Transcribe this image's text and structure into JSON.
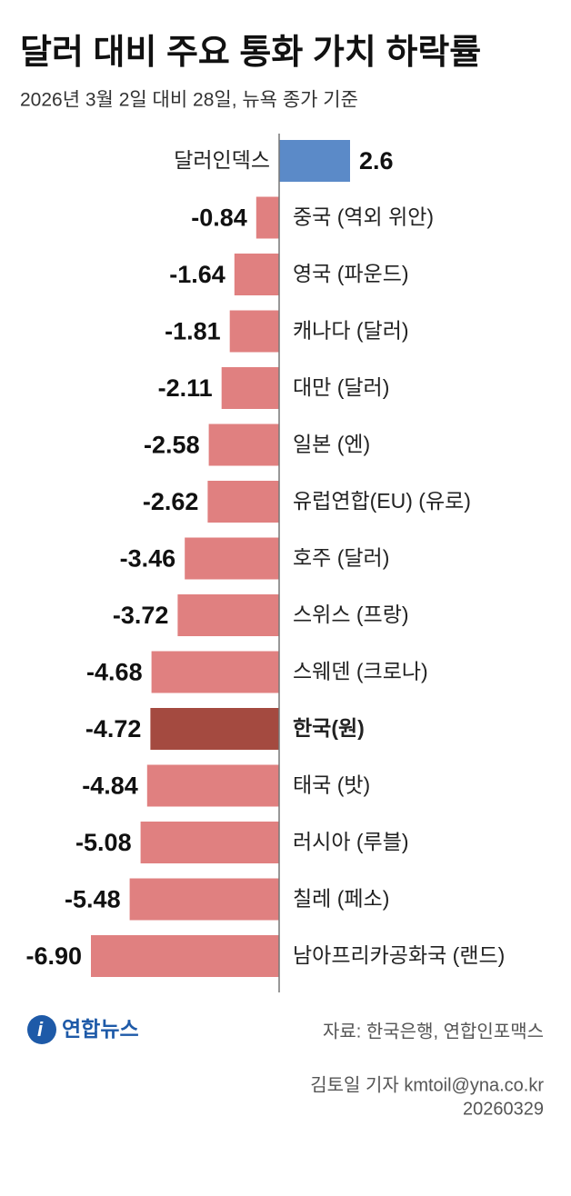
{
  "chart_data": {
    "type": "bar",
    "orientation": "horizontal",
    "title": "달러 대비 주요 통화 가치 하락률",
    "subtitle": "2026년 3월 2일 대비 28일, 뉴욕 종가 기준",
    "categories": [
      "달러인덱스",
      "중국 (역외 위안)",
      "영국 (파운드)",
      "캐나다 (달러)",
      "대만 (달러)",
      "일본 (엔)",
      "유럽연합(EU) (유로)",
      "호주 (달러)",
      "스위스 (프랑)",
      "스웨덴 (크로나)",
      "한국(원)",
      "태국 (밧)",
      "러시아 (루블)",
      "칠레 (페소)",
      "남아프리카공화국 (랜드)"
    ],
    "values": [
      2.6,
      -0.84,
      -1.64,
      -1.81,
      -2.11,
      -2.58,
      -2.62,
      -3.46,
      -3.72,
      -4.68,
      -4.72,
      -4.84,
      -5.08,
      -5.48,
      -6.9
    ],
    "value_labels": [
      "2.6",
      "-0.84",
      "-1.64",
      "-1.81",
      "-2.11",
      "-2.58",
      "-2.62",
      "-3.46",
      "-3.72",
      "-4.68",
      "-4.72",
      "-4.84",
      "-5.08",
      "-5.48",
      "-6.90"
    ],
    "color": "#e08080",
    "colors": [
      "#5b8ac8",
      "#e08080",
      "#e08080",
      "#e08080",
      "#e08080",
      "#e08080",
      "#e08080",
      "#e08080",
      "#e08080",
      "#e08080",
      "#a44a40",
      "#e08080",
      "#e08080",
      "#e08080",
      "#e08080"
    ],
    "xlim": [
      -7,
      3
    ]
  },
  "footer": {
    "logo": "연합뉴스",
    "source": "자료: 한국은행, 연합인포맥스",
    "credit": "김토일 기자 kmtoil@yna.co.kr",
    "date": "20260329"
  }
}
